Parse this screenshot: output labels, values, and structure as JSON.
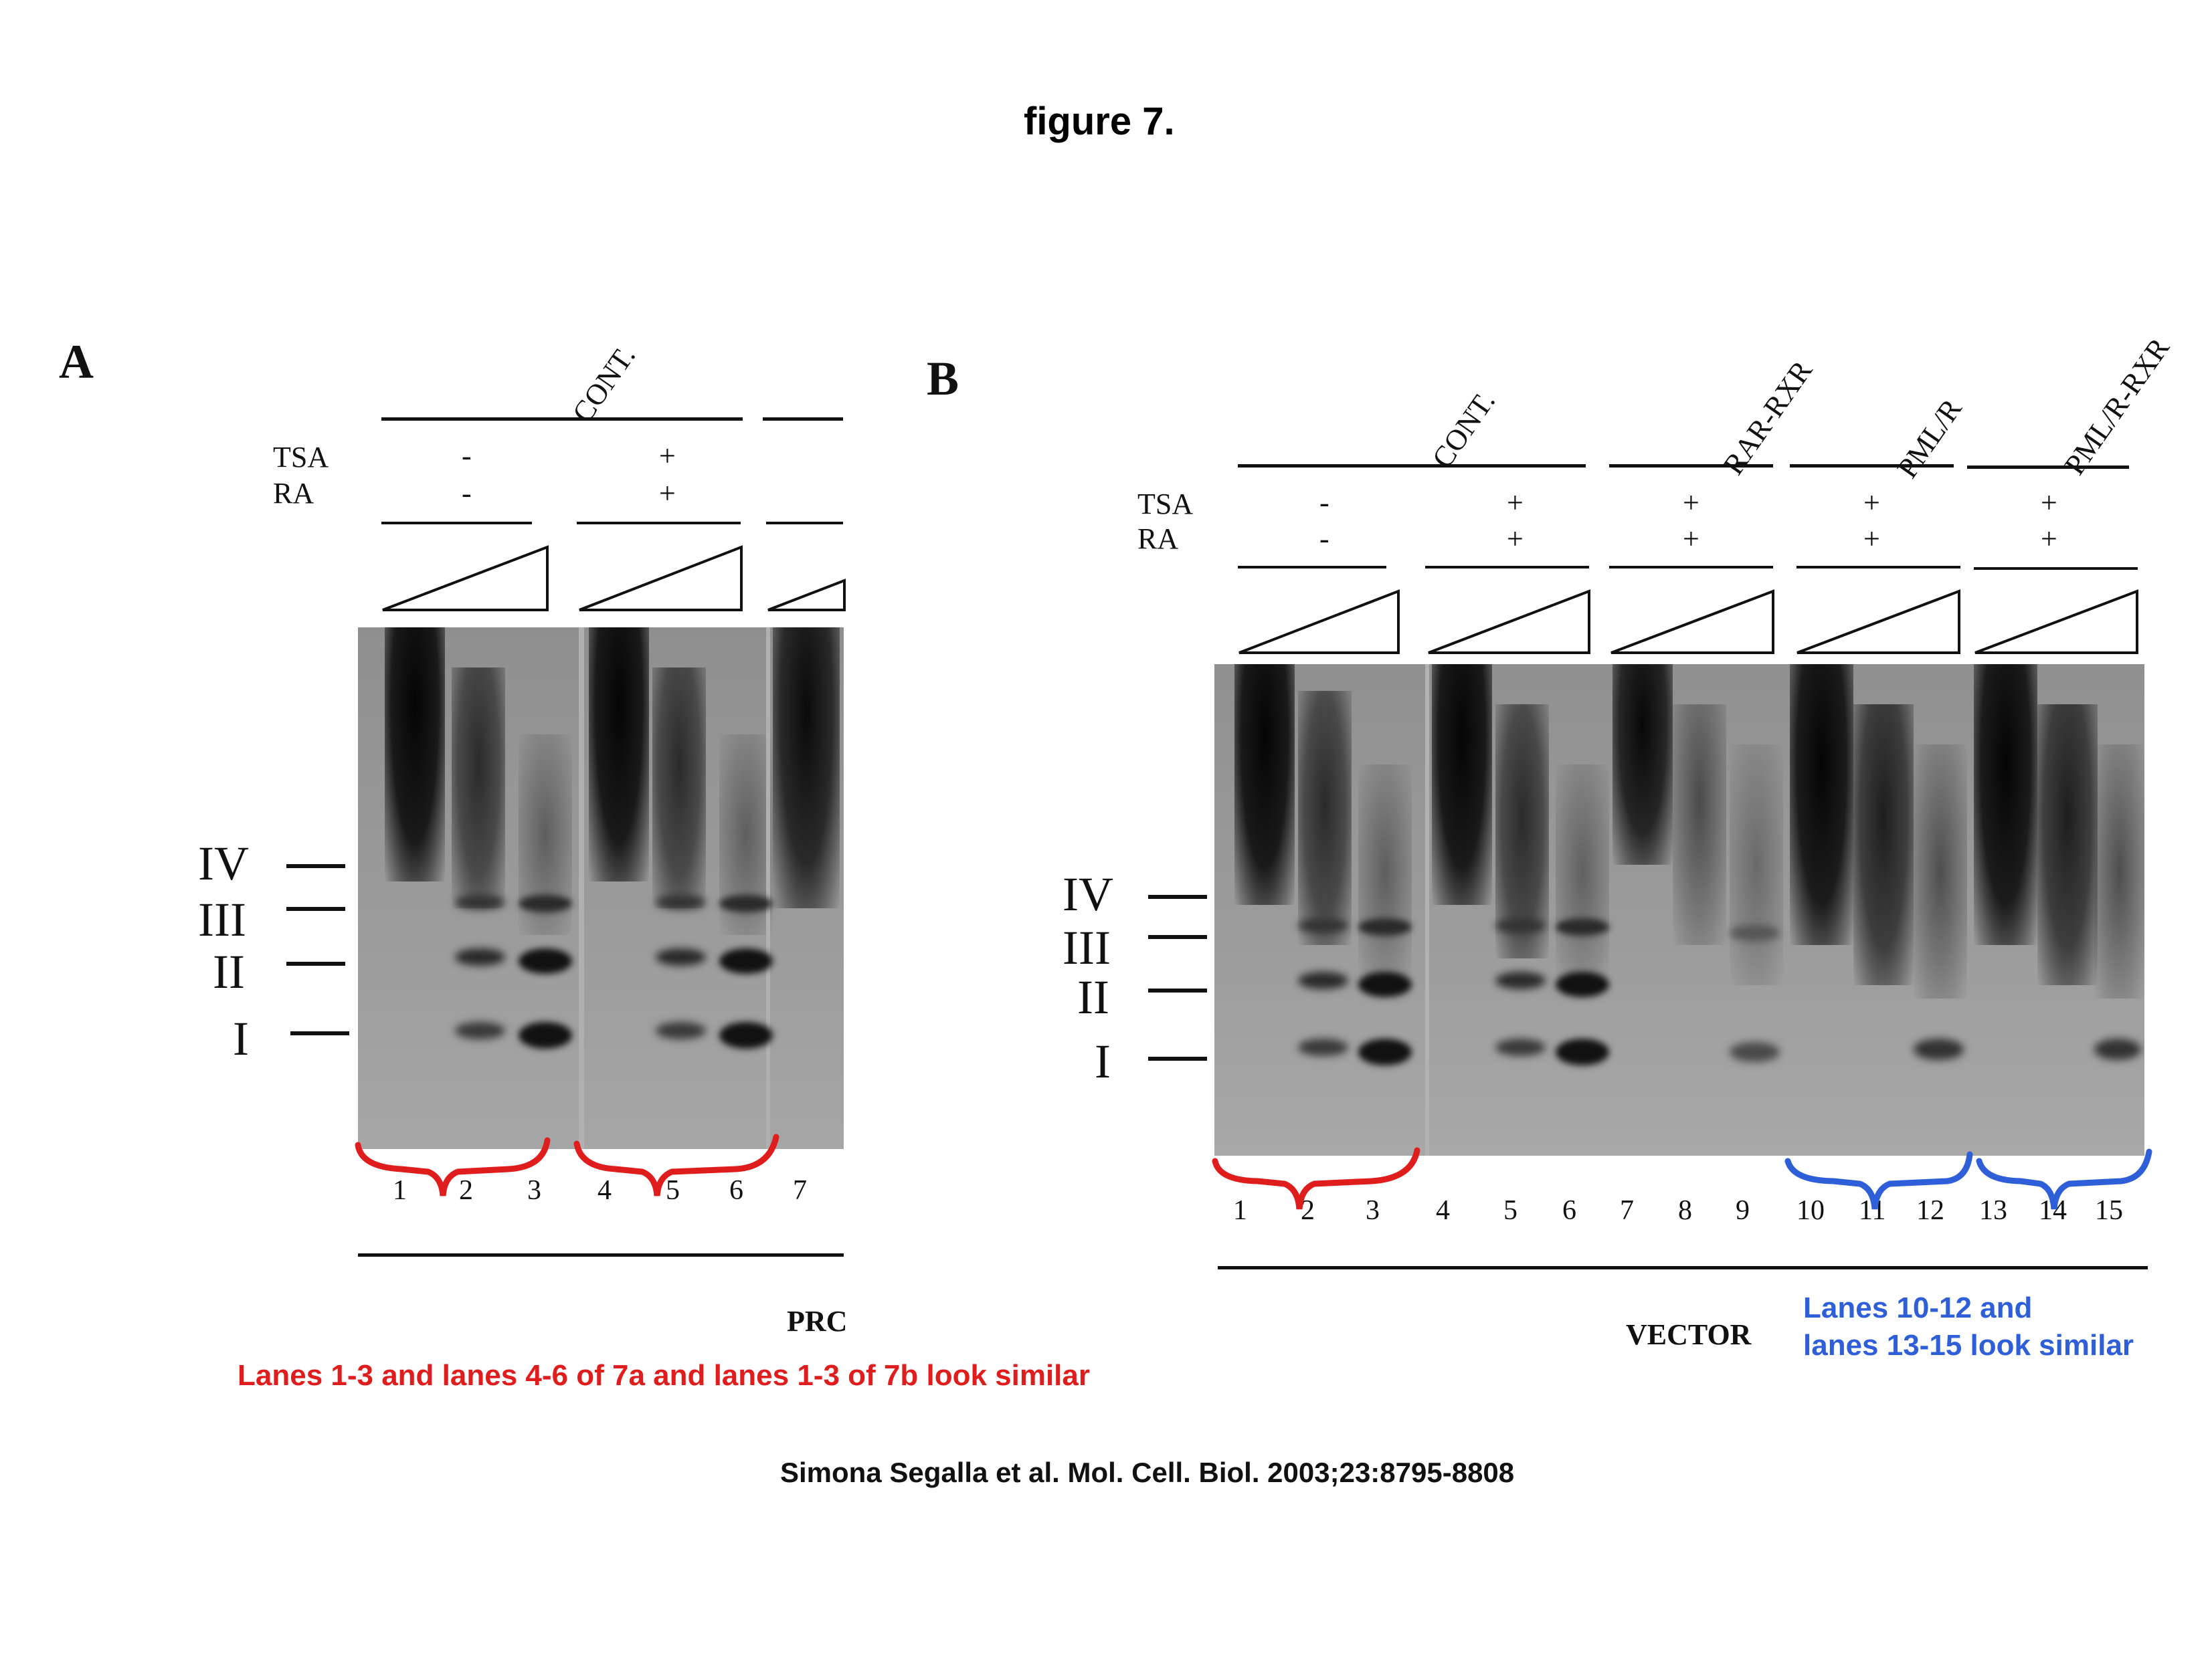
{
  "title": "figure 7.",
  "panel_a": {
    "letter": "A",
    "header": "CONT.",
    "tsa_label": "TSA",
    "ra_label": "RA",
    "tsa_signs": [
      "-",
      "+"
    ],
    "ra_signs": [
      "-",
      "+"
    ],
    "lanes": [
      "1",
      "2",
      "3",
      "4",
      "5",
      "6",
      "7"
    ],
    "band_labels": [
      "IV",
      "III",
      "II",
      "I"
    ],
    "footer": "PRC"
  },
  "panel_b": {
    "letter": "B",
    "headers": [
      "CONT.",
      "RAR-RXR",
      "PML/R",
      "PML/R-RXR"
    ],
    "tsa_label": "TSA",
    "ra_label": "RA",
    "tsa_signs": [
      "-",
      "+",
      "+",
      "+",
      "+"
    ],
    "ra_signs": [
      "-",
      "+",
      "+",
      "+",
      "+"
    ],
    "lanes": [
      "1",
      "2",
      "3",
      "4",
      "5",
      "6",
      "7",
      "8",
      "9",
      "10",
      "11",
      "12",
      "13",
      "14",
      "15"
    ],
    "band_labels": [
      "IV",
      "III",
      "II",
      "I"
    ],
    "footer": "VECTOR"
  },
  "annotations": {
    "red_note": "Lanes 1-3 and lanes 4-6  of 7a and lanes 1-3 of 7b look similar",
    "blue_note_line1": "Lanes 10-12 and",
    "blue_note_line2": "lanes 13-15 look similar",
    "red_color": "#e01d1d",
    "blue_color": "#2f5fd8"
  },
  "citation": "Simona Segalla et al. Mol. Cell. Biol. 2003;23:8795-8808"
}
